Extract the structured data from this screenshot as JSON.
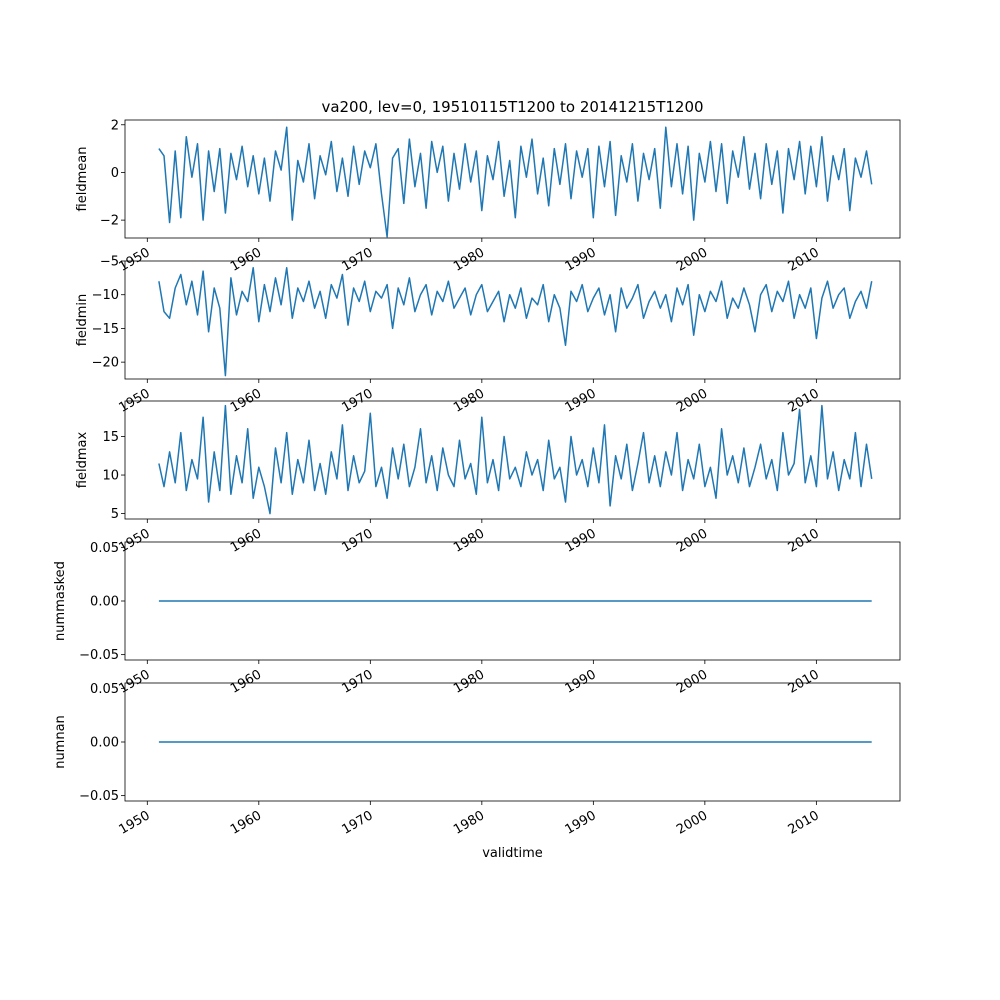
{
  "title": "va200, lev=0, 19510115T1200 to 20141215T1200",
  "xlabel": "validtime",
  "line_color": "#1f77b4",
  "chart_data": [
    {
      "type": "line",
      "ylabel": "fieldmean",
      "xlim": [
        1948.0,
        2017.5
      ],
      "ylim": [
        -2.75,
        2.2
      ],
      "x_ticks": [
        1950,
        1960,
        1970,
        1980,
        1990,
        2000,
        2010
      ],
      "x_tick_labels": [
        "1950",
        "1960",
        "1970",
        "1980",
        "1990",
        "2000",
        "2010"
      ],
      "y_ticks": [
        -2,
        0,
        2
      ],
      "y_tick_labels": [
        "−2",
        "0",
        "2"
      ],
      "series_range": [
        1951.04,
        2014.96
      ],
      "x": [
        1951.04,
        1951.5,
        1952.0,
        1952.5,
        1953.0,
        1953.5,
        1954.0,
        1954.5,
        1955.0,
        1955.5,
        1956.0,
        1956.5,
        1957.0,
        1957.5,
        1958.0,
        1958.5,
        1959.0,
        1959.5,
        1960.0,
        1960.5,
        1961.0,
        1961.5,
        1962.0,
        1962.5,
        1963.0,
        1963.5,
        1964.0,
        1964.5,
        1965.0,
        1965.5,
        1966.0,
        1966.5,
        1967.0,
        1967.5,
        1968.0,
        1968.5,
        1969.0,
        1969.5,
        1970.0,
        1970.5,
        1971.0,
        1971.5,
        1972.0,
        1972.5,
        1973.0,
        1973.5,
        1974.0,
        1974.5,
        1975.0,
        1975.5,
        1976.0,
        1976.5,
        1977.0,
        1977.5,
        1978.0,
        1978.5,
        1979.0,
        1979.5,
        1980.0,
        1980.5,
        1981.0,
        1981.5,
        1982.0,
        1982.5,
        1983.0,
        1983.5,
        1984.0,
        1984.5,
        1985.0,
        1985.5,
        1986.0,
        1986.5,
        1987.0,
        1987.5,
        1988.0,
        1988.5,
        1989.0,
        1989.5,
        1990.0,
        1990.5,
        1991.0,
        1991.5,
        1992.0,
        1992.5,
        1993.0,
        1993.5,
        1994.0,
        1994.5,
        1995.0,
        1995.5,
        1996.0,
        1996.5,
        1997.0,
        1997.5,
        1998.0,
        1998.5,
        1999.0,
        1999.5,
        2000.0,
        2000.5,
        2001.0,
        2001.5,
        2002.0,
        2002.5,
        2003.0,
        2003.5,
        2004.0,
        2004.5,
        2005.0,
        2005.5,
        2006.0,
        2006.5,
        2007.0,
        2007.5,
        2008.0,
        2008.5,
        2009.0,
        2009.5,
        2010.0,
        2010.5,
        2011.0,
        2011.5,
        2012.0,
        2012.5,
        2013.0,
        2013.5,
        2014.0,
        2014.5,
        2014.96
      ],
      "y": [
        1.0,
        0.7,
        -2.1,
        0.9,
        -1.9,
        1.5,
        -0.2,
        1.2,
        -2.0,
        0.9,
        -0.8,
        1.0,
        -1.7,
        0.8,
        -0.3,
        1.1,
        -0.6,
        0.7,
        -0.9,
        0.6,
        -1.2,
        0.9,
        0.1,
        1.9,
        -2.0,
        0.5,
        -0.4,
        1.2,
        -1.1,
        0.7,
        -0.1,
        1.3,
        -0.8,
        0.6,
        -1.0,
        1.1,
        -0.5,
        0.9,
        0.2,
        1.2,
        -0.9,
        -2.7,
        0.6,
        1.0,
        -1.3,
        1.4,
        -0.6,
        0.8,
        -1.5,
        1.3,
        0.0,
        1.1,
        -1.2,
        0.8,
        -0.7,
        1.2,
        -0.4,
        0.9,
        -1.6,
        0.7,
        -0.3,
        1.3,
        -1.0,
        0.5,
        -1.9,
        1.1,
        -0.2,
        1.4,
        -0.9,
        0.6,
        -1.4,
        1.0,
        -0.5,
        1.2,
        -1.1,
        0.9,
        -0.2,
        1.0,
        -1.9,
        1.1,
        -0.6,
        1.3,
        -1.8,
        0.7,
        -0.4,
        1.2,
        -1.2,
        0.8,
        -0.3,
        1.0,
        -1.5,
        1.9,
        -0.6,
        1.2,
        -0.9,
        1.1,
        -2.0,
        0.8,
        -0.4,
        1.3,
        -0.8,
        1.2,
        -1.3,
        0.9,
        -0.2,
        1.5,
        -0.7,
        0.8,
        -1.1,
        1.2,
        -0.5,
        0.9,
        -1.7,
        1.0,
        -0.3,
        1.3,
        -0.9,
        1.1,
        -0.6,
        1.5,
        -1.2,
        0.7,
        -0.3,
        1.0,
        -1.6,
        0.6,
        -0.2,
        0.9,
        -0.5
      ]
    },
    {
      "type": "line",
      "ylabel": "fieldmin",
      "xlim": [
        1948.0,
        2017.5
      ],
      "ylim": [
        -22.5,
        -5.0
      ],
      "x_ticks": [
        1950,
        1960,
        1970,
        1980,
        1990,
        2000,
        2010
      ],
      "x_tick_labels": [
        "1950",
        "1960",
        "1970",
        "1980",
        "1990",
        "2000",
        "2010"
      ],
      "y_ticks": [
        -20,
        -15,
        -10,
        -5
      ],
      "y_tick_labels": [
        "−20",
        "−15",
        "−10",
        "−5"
      ],
      "series_range": [
        1951.04,
        2014.96
      ],
      "x": [
        1951.04,
        1951.5,
        1952.0,
        1952.5,
        1953.0,
        1953.5,
        1954.0,
        1954.5,
        1955.0,
        1955.5,
        1956.0,
        1956.5,
        1957.0,
        1957.5,
        1958.0,
        1958.5,
        1959.0,
        1959.5,
        1960.0,
        1960.5,
        1961.0,
        1961.5,
        1962.0,
        1962.5,
        1963.0,
        1963.5,
        1964.0,
        1964.5,
        1965.0,
        1965.5,
        1966.0,
        1966.5,
        1967.0,
        1967.5,
        1968.0,
        1968.5,
        1969.0,
        1969.5,
        1970.0,
        1970.5,
        1971.0,
        1971.5,
        1972.0,
        1972.5,
        1973.0,
        1973.5,
        1974.0,
        1974.5,
        1975.0,
        1975.5,
        1976.0,
        1976.5,
        1977.0,
        1977.5,
        1978.0,
        1978.5,
        1979.0,
        1979.5,
        1980.0,
        1980.5,
        1981.0,
        1981.5,
        1982.0,
        1982.5,
        1983.0,
        1983.5,
        1984.0,
        1984.5,
        1985.0,
        1985.5,
        1986.0,
        1986.5,
        1987.0,
        1987.5,
        1988.0,
        1988.5,
        1989.0,
        1989.5,
        1990.0,
        1990.5,
        1991.0,
        1991.5,
        1992.0,
        1992.5,
        1993.0,
        1993.5,
        1994.0,
        1994.5,
        1995.0,
        1995.5,
        1996.0,
        1996.5,
        1997.0,
        1997.5,
        1998.0,
        1998.5,
        1999.0,
        1999.5,
        2000.0,
        2000.5,
        2001.0,
        2001.5,
        2002.0,
        2002.5,
        2003.0,
        2003.5,
        2004.0,
        2004.5,
        2005.0,
        2005.5,
        2006.0,
        2006.5,
        2007.0,
        2007.5,
        2008.0,
        2008.5,
        2009.0,
        2009.5,
        2010.0,
        2010.5,
        2011.0,
        2011.5,
        2012.0,
        2012.5,
        2013.0,
        2013.5,
        2014.0,
        2014.5,
        2014.96
      ],
      "y": [
        -8.0,
        -12.5,
        -13.5,
        -9.0,
        -7.0,
        -11.5,
        -8.0,
        -13.0,
        -6.5,
        -15.5,
        -9.0,
        -12.0,
        -22.0,
        -7.5,
        -13.0,
        -9.5,
        -11.0,
        -6.0,
        -14.0,
        -8.5,
        -12.5,
        -7.5,
        -11.5,
        -6.0,
        -13.5,
        -9.0,
        -11.0,
        -8.0,
        -12.0,
        -9.5,
        -13.5,
        -8.5,
        -10.5,
        -7.0,
        -14.5,
        -9.0,
        -11.0,
        -8.0,
        -12.5,
        -9.5,
        -10.5,
        -8.5,
        -15.0,
        -9.0,
        -11.5,
        -7.5,
        -12.5,
        -10.0,
        -8.5,
        -13.0,
        -9.5,
        -11.0,
        -8.0,
        -12.0,
        -10.5,
        -9.0,
        -13.0,
        -10.0,
        -8.5,
        -12.5,
        -11.0,
        -9.5,
        -14.0,
        -10.0,
        -12.0,
        -9.0,
        -13.5,
        -10.5,
        -11.5,
        -8.5,
        -14.0,
        -10.0,
        -12.0,
        -17.5,
        -9.5,
        -11.0,
        -8.5,
        -12.5,
        -10.5,
        -9.0,
        -13.0,
        -10.0,
        -15.5,
        -9.0,
        -12.0,
        -10.5,
        -8.5,
        -13.5,
        -11.0,
        -9.5,
        -12.0,
        -10.0,
        -14.0,
        -9.0,
        -11.5,
        -8.5,
        -16.0,
        -10.0,
        -12.5,
        -9.5,
        -11.0,
        -8.0,
        -13.5,
        -10.5,
        -12.0,
        -9.0,
        -11.5,
        -15.5,
        -10.0,
        -8.5,
        -12.5,
        -9.5,
        -11.0,
        -8.0,
        -13.5,
        -10.0,
        -12.0,
        -9.0,
        -16.5,
        -10.5,
        -8.0,
        -12.0,
        -10.0,
        -9.0,
        -13.5,
        -11.0,
        -9.5,
        -12.0,
        -8.0
      ]
    },
    {
      "type": "line",
      "ylabel": "fieldmax",
      "xlim": [
        1948.0,
        2017.5
      ],
      "ylim": [
        4.3,
        19.6
      ],
      "x_ticks": [
        1950,
        1960,
        1970,
        1980,
        1990,
        2000,
        2010
      ],
      "x_tick_labels": [
        "1950",
        "1960",
        "1970",
        "1980",
        "1990",
        "2000",
        "2010"
      ],
      "y_ticks": [
        5,
        10,
        15
      ],
      "y_tick_labels": [
        "5",
        "10",
        "15"
      ],
      "series_range": [
        1951.04,
        2014.96
      ],
      "x": [
        1951.04,
        1951.5,
        1952.0,
        1952.5,
        1953.0,
        1953.5,
        1954.0,
        1954.5,
        1955.0,
        1955.5,
        1956.0,
        1956.5,
        1957.0,
        1957.5,
        1958.0,
        1958.5,
        1959.0,
        1959.5,
        1960.0,
        1960.5,
        1961.0,
        1961.5,
        1962.0,
        1962.5,
        1963.0,
        1963.5,
        1964.0,
        1964.5,
        1965.0,
        1965.5,
        1966.0,
        1966.5,
        1967.0,
        1967.5,
        1968.0,
        1968.5,
        1969.0,
        1969.5,
        1970.0,
        1970.5,
        1971.0,
        1971.5,
        1972.0,
        1972.5,
        1973.0,
        1973.5,
        1974.0,
        1974.5,
        1975.0,
        1975.5,
        1976.0,
        1976.5,
        1977.0,
        1977.5,
        1978.0,
        1978.5,
        1979.0,
        1979.5,
        1980.0,
        1980.5,
        1981.0,
        1981.5,
        1982.0,
        1982.5,
        1983.0,
        1983.5,
        1984.0,
        1984.5,
        1985.0,
        1985.5,
        1986.0,
        1986.5,
        1987.0,
        1987.5,
        1988.0,
        1988.5,
        1989.0,
        1989.5,
        1990.0,
        1990.5,
        1991.0,
        1991.5,
        1992.0,
        1992.5,
        1993.0,
        1993.5,
        1994.0,
        1994.5,
        1995.0,
        1995.5,
        1996.0,
        1996.5,
        1997.0,
        1997.5,
        1998.0,
        1998.5,
        1999.0,
        1999.5,
        2000.0,
        2000.5,
        2001.0,
        2001.5,
        2002.0,
        2002.5,
        2003.0,
        2003.5,
        2004.0,
        2004.5,
        2005.0,
        2005.5,
        2006.0,
        2006.5,
        2007.0,
        2007.5,
        2008.0,
        2008.5,
        2009.0,
        2009.5,
        2010.0,
        2010.5,
        2011.0,
        2011.5,
        2012.0,
        2012.5,
        2013.0,
        2013.5,
        2014.0,
        2014.5,
        2014.96
      ],
      "y": [
        11.5,
        8.5,
        13.0,
        9.0,
        15.5,
        8.0,
        12.0,
        9.5,
        17.5,
        6.5,
        13.0,
        8.0,
        19.0,
        7.5,
        12.5,
        9.0,
        16.0,
        7.0,
        11.0,
        8.5,
        5.0,
        13.5,
        9.0,
        15.5,
        7.5,
        12.0,
        9.0,
        14.5,
        8.0,
        11.5,
        7.5,
        13.0,
        9.5,
        16.5,
        8.0,
        12.5,
        9.0,
        10.5,
        18.0,
        8.5,
        11.0,
        7.0,
        13.5,
        9.5,
        14.0,
        8.5,
        11.0,
        16.0,
        9.0,
        12.5,
        8.0,
        13.5,
        10.0,
        8.5,
        14.5,
        9.5,
        11.5,
        7.5,
        17.5,
        9.0,
        12.0,
        8.0,
        15.0,
        9.5,
        11.0,
        8.5,
        13.0,
        10.0,
        12.0,
        8.0,
        14.5,
        9.5,
        11.0,
        6.5,
        15.0,
        10.0,
        12.0,
        8.5,
        13.5,
        9.0,
        16.5,
        6.0,
        12.5,
        9.5,
        14.0,
        8.0,
        11.5,
        15.5,
        9.0,
        12.5,
        8.5,
        13.0,
        10.0,
        15.5,
        8.0,
        12.0,
        9.5,
        14.0,
        8.5,
        11.0,
        7.0,
        16.0,
        10.0,
        12.5,
        9.0,
        13.5,
        8.5,
        11.0,
        14.0,
        9.5,
        12.0,
        8.0,
        15.5,
        10.0,
        11.5,
        18.5,
        9.0,
        12.5,
        8.5,
        19.0,
        9.5,
        13.0,
        8.0,
        12.0,
        9.5,
        15.5,
        8.5,
        14.0,
        9.5
      ]
    },
    {
      "type": "line",
      "ylabel": "nummasked",
      "xlim": [
        1948.0,
        2017.5
      ],
      "ylim": [
        -0.055,
        0.055
      ],
      "x_ticks": [
        1950,
        1960,
        1970,
        1980,
        1990,
        2000,
        2010
      ],
      "x_tick_labels": [
        "1950",
        "1960",
        "1970",
        "1980",
        "1990",
        "2000",
        "2010"
      ],
      "y_ticks": [
        -0.05,
        0.0,
        0.05
      ],
      "y_tick_labels": [
        "−0.05",
        "0.00",
        "0.05"
      ],
      "series_range": [
        1951.04,
        2014.96
      ],
      "x": [
        1951.04,
        2014.96
      ],
      "y": [
        0.0,
        0.0
      ]
    },
    {
      "type": "line",
      "ylabel": "numnan",
      "xlim": [
        1948.0,
        2017.5
      ],
      "ylim": [
        -0.055,
        0.055
      ],
      "x_ticks": [
        1950,
        1960,
        1970,
        1980,
        1990,
        2000,
        2010
      ],
      "x_tick_labels": [
        "1950",
        "1960",
        "1970",
        "1980",
        "1990",
        "2000",
        "2010"
      ],
      "y_ticks": [
        -0.05,
        0.0,
        0.05
      ],
      "y_tick_labels": [
        "−0.05",
        "0.00",
        "0.05"
      ],
      "series_range": [
        1951.04,
        2014.96
      ],
      "x": [
        1951.04,
        2014.96
      ],
      "y": [
        0.0,
        0.0
      ]
    }
  ]
}
